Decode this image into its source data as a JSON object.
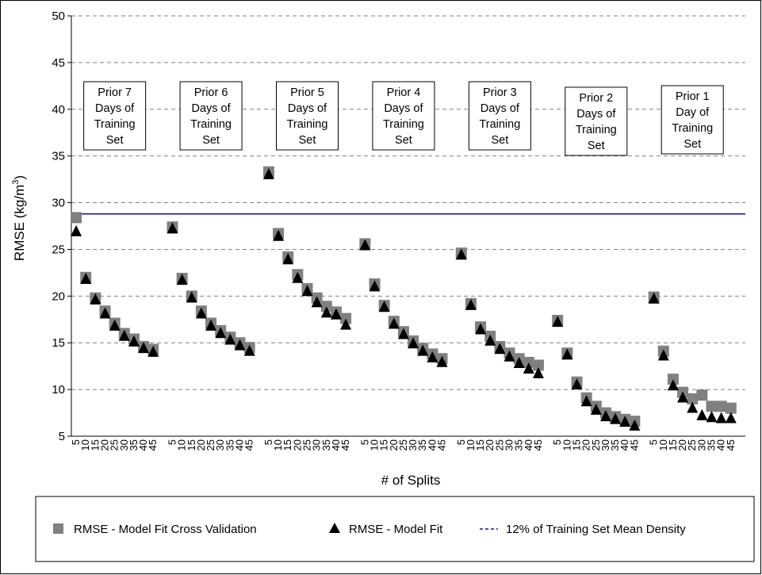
{
  "chart_data": {
    "type": "scatter",
    "ylabel": "RMSE (kg/m",
    "ylabel_sup": "3",
    "ylabel_tail": ")",
    "xlabel": "# of Splits",
    "ylim": [
      5,
      50
    ],
    "yticks": [
      5,
      10,
      15,
      20,
      25,
      30,
      35,
      40,
      45,
      50
    ],
    "grid": "horizontal dashed",
    "legend_position": "bottom",
    "split_labels": [
      "5",
      "10",
      "15",
      "20",
      "25",
      "30",
      "35",
      "40",
      "45"
    ],
    "threshold": {
      "name": "12% of Training Set Mean Density",
      "value": 28.8,
      "color": "#1a1a80"
    },
    "series": [
      {
        "name": "RMSE - Model Fit Cross Validation",
        "marker": "square",
        "color": "#808080"
      },
      {
        "name": "RMSE - Model Fit",
        "marker": "triangle",
        "color": "#000000"
      }
    ],
    "groups": [
      {
        "annotation": [
          "Prior 7",
          "Days of",
          "Training",
          "Set"
        ],
        "cv": [
          28.4,
          22.0,
          19.8,
          18.4,
          17.1,
          16.0,
          15.4,
          14.6,
          14.3
        ],
        "fit": [
          27.0,
          21.9,
          19.7,
          18.2,
          16.9,
          15.8,
          15.2,
          14.5,
          14.1
        ]
      },
      {
        "annotation": [
          "Prior 6",
          "Days of",
          "Training",
          "Set"
        ],
        "cv": [
          27.4,
          21.9,
          20.0,
          18.4,
          17.1,
          16.3,
          15.6,
          15.0,
          14.5
        ],
        "fit": [
          27.3,
          21.8,
          19.9,
          18.2,
          16.9,
          16.1,
          15.4,
          14.8,
          14.2
        ]
      },
      {
        "annotation": [
          "Prior 5",
          "Days of",
          "Training",
          "Set"
        ],
        "cv": [
          33.3,
          26.7,
          24.2,
          22.3,
          20.8,
          19.8,
          18.9,
          18.3,
          17.6
        ],
        "fit": [
          33.1,
          26.5,
          24.0,
          22.0,
          20.6,
          19.4,
          18.3,
          18.1,
          17.0
        ]
      },
      {
        "annotation": [
          "Prior 4",
          "Days of",
          "Training",
          "Set"
        ],
        "cv": [
          25.6,
          21.3,
          19.0,
          17.3,
          16.2,
          15.2,
          14.4,
          13.8,
          13.3
        ],
        "fit": [
          25.5,
          21.1,
          18.9,
          17.1,
          16.0,
          15.0,
          14.2,
          13.5,
          13.0
        ]
      },
      {
        "annotation": [
          "Prior 3",
          "Days of",
          "Training",
          "Set"
        ],
        "cv": [
          24.6,
          19.2,
          16.7,
          15.7,
          14.6,
          13.9,
          13.3,
          12.9,
          12.6
        ],
        "fit": [
          24.5,
          19.1,
          16.5,
          15.3,
          14.4,
          13.6,
          12.9,
          12.3,
          11.8
        ]
      },
      {
        "annotation": [
          "Prior  2",
          "Days of",
          "Training",
          "Set"
        ],
        "cv": [
          17.4,
          13.9,
          10.8,
          9.1,
          8.2,
          7.5,
          7.1,
          6.8,
          6.6
        ],
        "fit": [
          17.3,
          13.8,
          10.6,
          8.8,
          7.9,
          7.2,
          6.9,
          6.6,
          6.2
        ]
      },
      {
        "annotation": [
          "Prior  1",
          "Day of",
          "Training",
          "Set"
        ],
        "cv": [
          19.9,
          14.1,
          11.1,
          9.7,
          9.0,
          9.4,
          8.2,
          8.2,
          8.0
        ],
        "fit": [
          19.8,
          13.7,
          10.5,
          9.2,
          8.1,
          7.3,
          7.1,
          7.0,
          7.0
        ]
      }
    ]
  }
}
